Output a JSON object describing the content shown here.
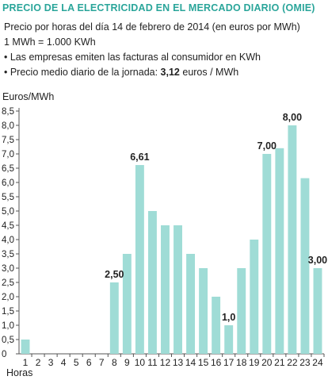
{
  "header": {
    "title": "PRECIO DE LA ELECTRICIDAD EN EL MERCADO DIARIO (OMIE)",
    "subtitle": "Precio por horas del día 14 de febrero de 2014 (en euros por MWh)",
    "conversion": "1 MWh = 1.000 KWh",
    "note_1": "• Las empresas emiten las facturas al consumidor en KWh",
    "note_2_prefix": "• Precio medio diario de la jornada: ",
    "note_2_value": "3,12",
    "note_2_suffix": "  euros / MWh"
  },
  "colors": {
    "title": "#2aa59a",
    "bar": "#9fdcd6",
    "axis": "#555555",
    "grid": "#e0e0e0"
  },
  "chart_data": {
    "type": "bar",
    "ylabel": "Euros/MWh",
    "xlabel": "Horas",
    "ylim": [
      0,
      8.5
    ],
    "yticks": [
      "0",
      "0,5",
      "1,0",
      "1,5",
      "2,0",
      "2,5",
      "3,0",
      "3,5",
      "4,0",
      "4,5",
      "5,0",
      "5,5",
      "6,0",
      "6,5",
      "7,0",
      "7,5",
      "8,0",
      "8,5"
    ],
    "categories": [
      "1",
      "2",
      "3",
      "4",
      "5",
      "6",
      "7",
      "8",
      "9",
      "10",
      "11",
      "12",
      "13",
      "14",
      "15",
      "16",
      "17",
      "18",
      "19",
      "20",
      "21",
      "22",
      "23",
      "24"
    ],
    "values": [
      0.5,
      0,
      0,
      0,
      0,
      0,
      0,
      2.5,
      3.5,
      6.61,
      5.0,
      4.5,
      4.5,
      3.5,
      3.0,
      2.0,
      1.0,
      3.0,
      4.0,
      7.0,
      7.2,
      8.0,
      6.15,
      3.0
    ],
    "data_labels": [
      {
        "category": "8",
        "text": "2,50"
      },
      {
        "category": "10",
        "text": "6,61"
      },
      {
        "category": "17",
        "text": "1,0"
      },
      {
        "category": "20",
        "text": "7,00"
      },
      {
        "category": "22",
        "text": "8,00"
      },
      {
        "category": "24",
        "text": "3,00"
      }
    ],
    "grid": false
  }
}
